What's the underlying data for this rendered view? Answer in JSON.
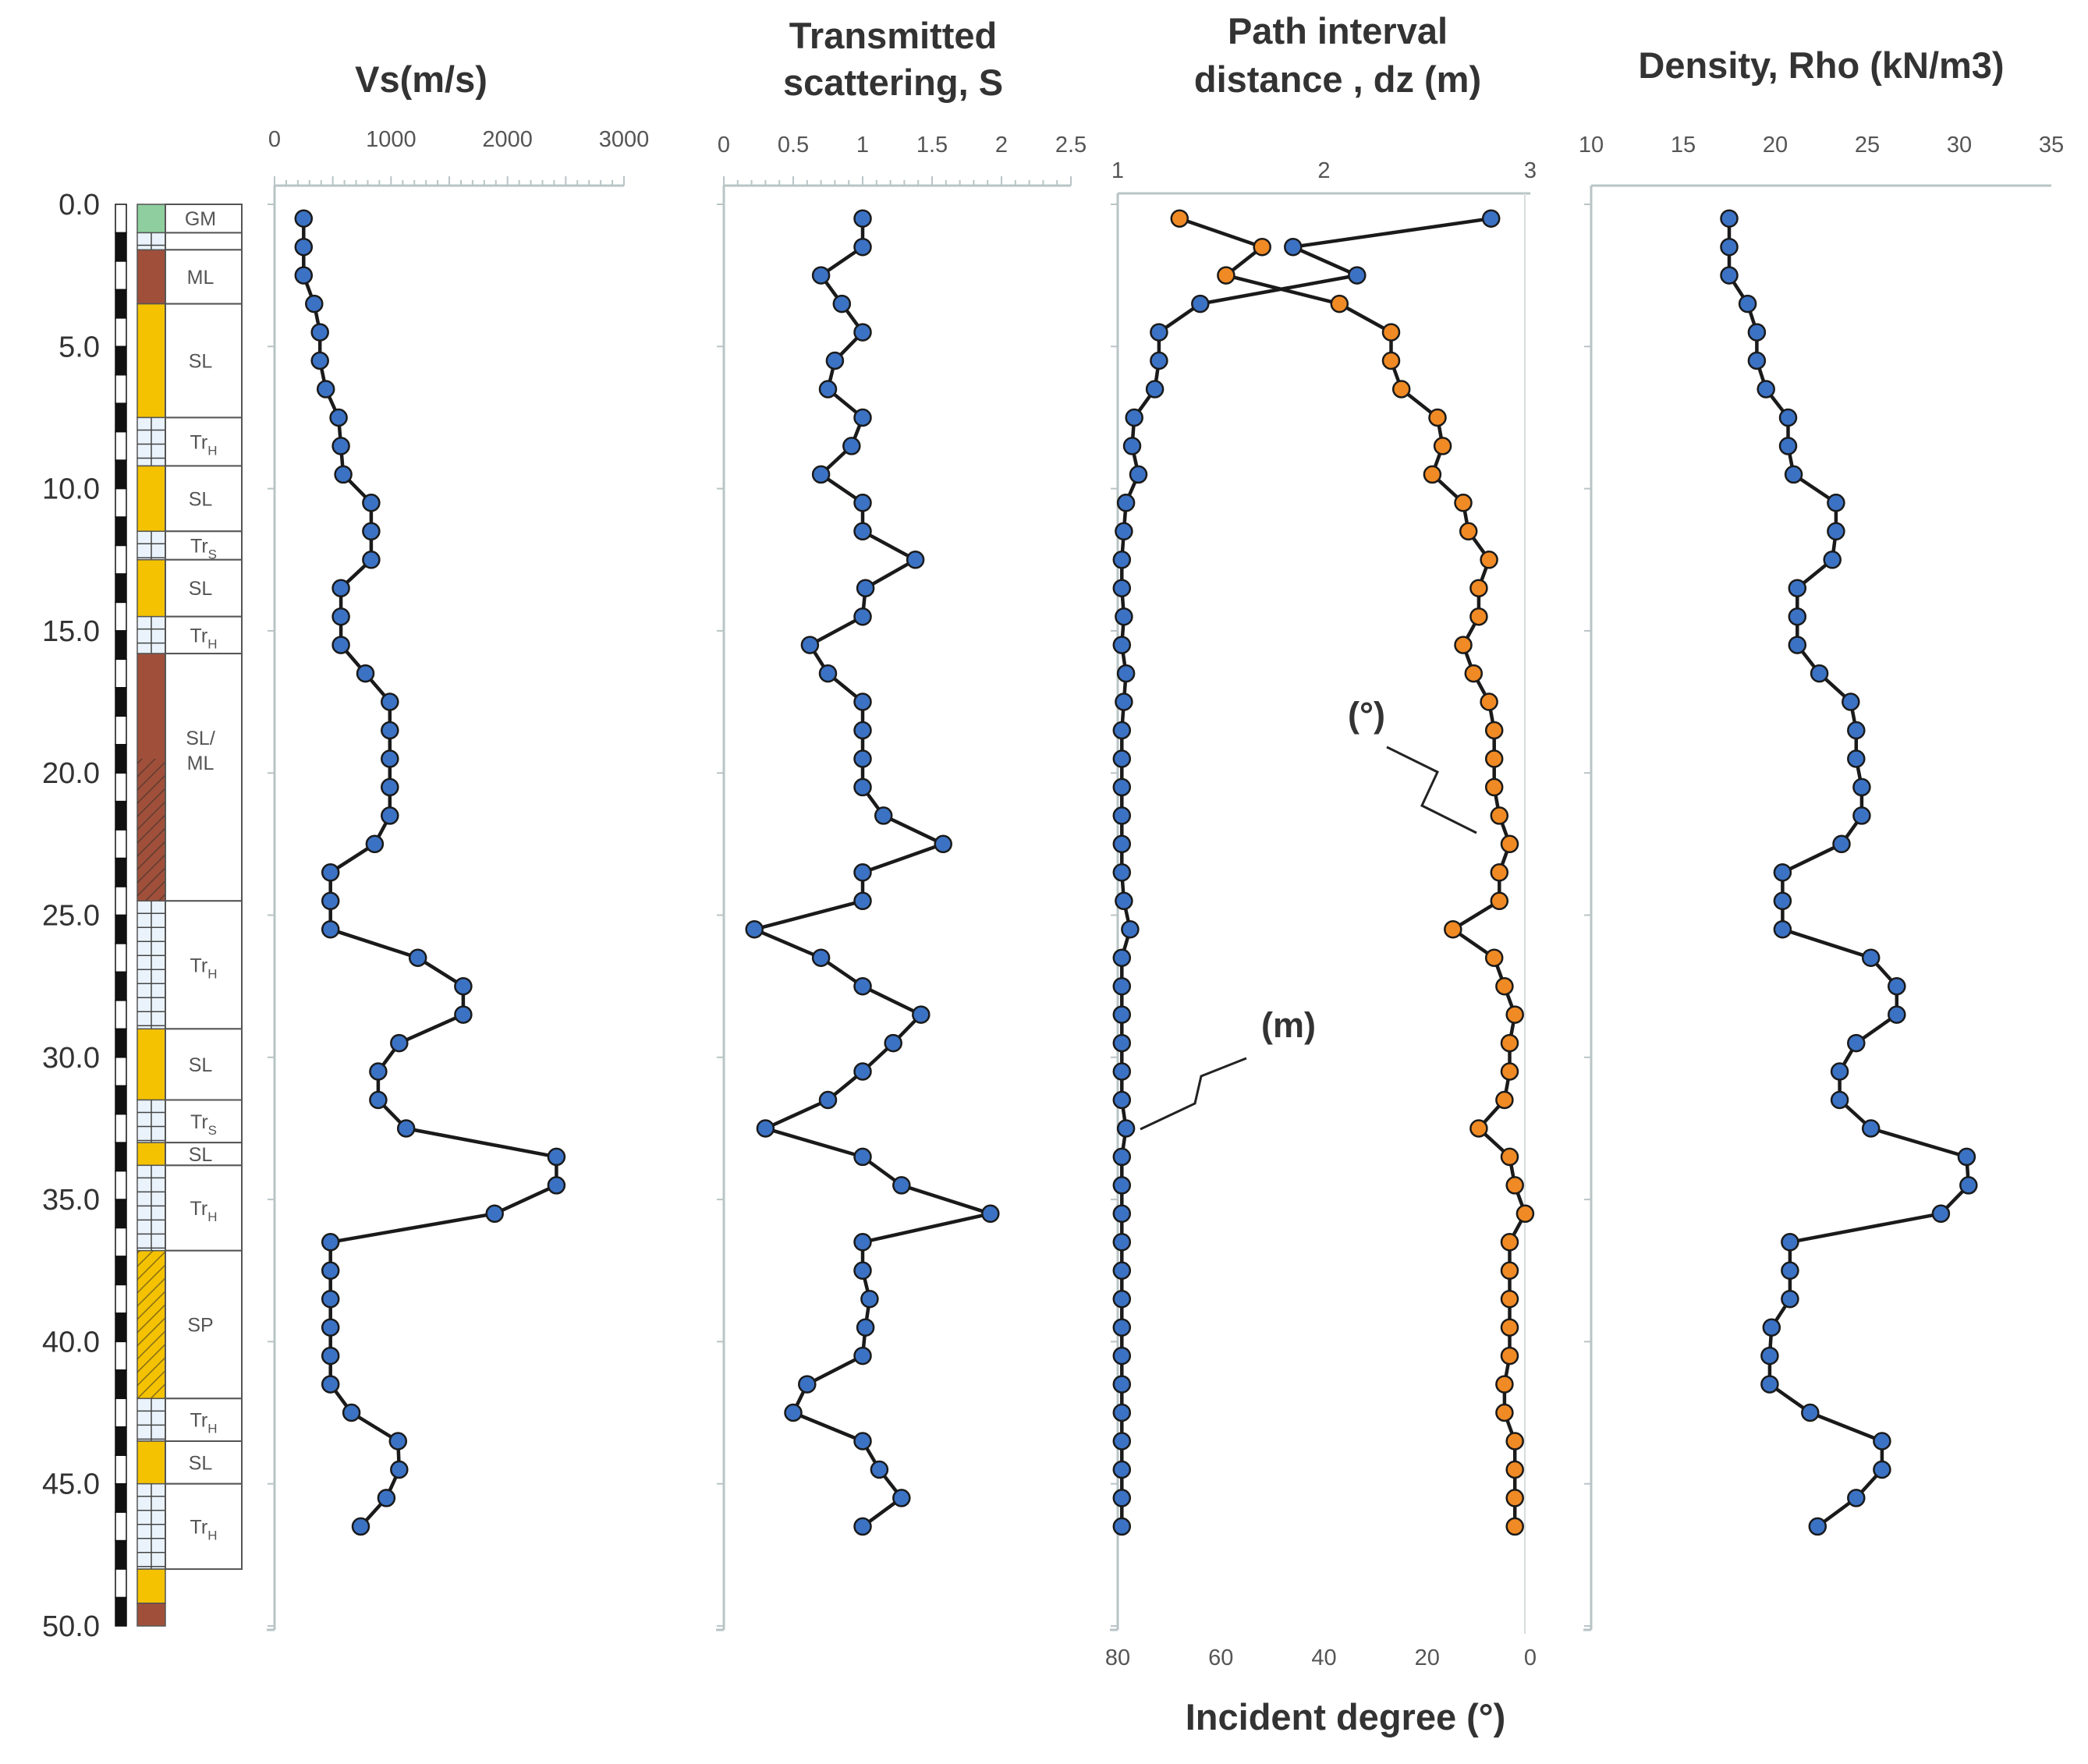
{
  "chart_data": {
    "type": "line",
    "depth_axis": {
      "label": "",
      "ticks": [
        "0.0",
        "5.0",
        "10.0",
        "15.0",
        "20.0",
        "25.0",
        "30.0",
        "35.0",
        "40.0",
        "45.0",
        "50.0"
      ],
      "range": [
        0,
        50
      ]
    },
    "lithology": [
      {
        "label": "GM",
        "top": 0,
        "bottom": 1.0,
        "color": "#8fcf9f"
      },
      {
        "label": "",
        "top": 1.0,
        "bottom": 1.6,
        "color": "#eaf3fb"
      },
      {
        "label": "ML",
        "top": 1.6,
        "bottom": 3.5,
        "color": "#a0503a"
      },
      {
        "label": "SL",
        "top": 3.5,
        "bottom": 7.5,
        "color": "#f4c200"
      },
      {
        "label": "TrH",
        "top": 7.5,
        "bottom": 9.2,
        "color": "#eaf3fb"
      },
      {
        "label": "SL",
        "top": 9.2,
        "bottom": 11.5,
        "color": "#f4c200"
      },
      {
        "label": "TrS",
        "top": 11.5,
        "bottom": 12.5,
        "color": "#eaf3fb"
      },
      {
        "label": "SL",
        "top": 12.5,
        "bottom": 14.5,
        "color": "#f4c200"
      },
      {
        "label": "TrH",
        "top": 14.5,
        "bottom": 15.8,
        "color": "#eaf3fb"
      },
      {
        "label": "SL/\nML",
        "top": 15.8,
        "bottom": 24.5,
        "color": "#a0503a"
      },
      {
        "label": "TrH",
        "top": 24.5,
        "bottom": 29.0,
        "color": "#eaf3fb"
      },
      {
        "label": "SL",
        "top": 29.0,
        "bottom": 31.5,
        "color": "#f4c200"
      },
      {
        "label": "TrS",
        "top": 31.5,
        "bottom": 33.0,
        "color": "#eaf3fb"
      },
      {
        "label": "SL",
        "top": 33.0,
        "bottom": 33.8,
        "color": "#f4c200"
      },
      {
        "label": "TrH",
        "top": 33.8,
        "bottom": 36.8,
        "color": "#eaf3fb"
      },
      {
        "label": "SP",
        "top": 36.8,
        "bottom": 42.0,
        "color": "#f4c200"
      },
      {
        "label": "TrH",
        "top": 42.0,
        "bottom": 43.5,
        "color": "#eaf3fb"
      },
      {
        "label": "SL",
        "top": 43.5,
        "bottom": 45.0,
        "color": "#f4c200"
      },
      {
        "label": "TrH",
        "top": 45.0,
        "bottom": 48.0,
        "color": "#eaf3fb"
      }
    ],
    "panels": [
      {
        "title_lines": [
          "Vs(m/s)"
        ],
        "xlim": [
          0,
          3000
        ],
        "ticks": [
          "0",
          "1000",
          "2000",
          "3000"
        ],
        "series": [
          {
            "name": "Vs",
            "color": "#3b72c4",
            "depth": [
              0.5,
              1.5,
              2.5,
              3.5,
              4.5,
              5.5,
              6.5,
              7.5,
              8.5,
              9.5,
              10.5,
              11.5,
              12.5,
              13.5,
              14.5,
              15.5,
              16.5,
              17.5,
              18.5,
              19.5,
              20.5,
              21.5,
              22.5,
              23.5,
              24.5,
              25.5,
              26.5,
              27.5,
              28.5,
              29.5,
              30.5,
              31.5,
              32.5,
              33.5,
              34.5,
              35.5,
              36.5,
              37.5,
              38.5,
              39.5,
              40.5,
              41.5,
              42.5,
              43.5,
              44.5,
              45.5,
              46.5
            ],
            "values": [
              250,
              250,
              250,
              340,
              390,
              390,
              440,
              550,
              570,
              590,
              830,
              830,
              830,
              570,
              570,
              570,
              780,
              990,
              990,
              990,
              990,
              990,
              860,
              480,
              480,
              480,
              1230,
              1620,
              1620,
              1070,
              890,
              890,
              1130,
              2420,
              2420,
              1890,
              480,
              480,
              480,
              480,
              480,
              480,
              660,
              1060,
              1070,
              960,
              740
            ]
          }
        ]
      },
      {
        "title_lines": [
          "Transmitted",
          "scattering, S"
        ],
        "xlim": [
          0,
          2.5
        ],
        "ticks": [
          "0",
          "0.5",
          "1",
          "1.5",
          "2",
          "2.5"
        ],
        "series": [
          {
            "name": "S",
            "color": "#3b72c4",
            "depth": [
              0.5,
              1.5,
              2.5,
              3.5,
              4.5,
              5.5,
              6.5,
              7.5,
              8.5,
              9.5,
              10.5,
              11.5,
              12.5,
              13.5,
              14.5,
              15.5,
              16.5,
              17.5,
              18.5,
              19.5,
              20.5,
              21.5,
              22.5,
              23.5,
              24.5,
              25.5,
              26.5,
              27.5,
              28.5,
              29.5,
              30.5,
              31.5,
              32.5,
              33.5,
              34.5,
              35.5,
              36.5,
              37.5,
              38.5,
              39.5,
              40.5,
              41.5,
              42.5,
              43.5,
              44.5,
              45.5,
              46.5
            ],
            "values": [
              1.0,
              1.0,
              0.7,
              0.85,
              1.0,
              0.8,
              0.75,
              1.0,
              0.92,
              0.7,
              1.0,
              1.0,
              1.38,
              1.02,
              1.0,
              0.62,
              0.75,
              1.0,
              1.0,
              1.0,
              1.0,
              1.15,
              1.58,
              1.0,
              1.0,
              0.22,
              0.7,
              1.0,
              1.42,
              1.22,
              1.0,
              0.75,
              0.3,
              1.0,
              1.28,
              1.92,
              1.0,
              1.0,
              1.05,
              1.02,
              1.0,
              0.6,
              0.5,
              1.0,
              1.12,
              1.28,
              1.0
            ]
          }
        ]
      },
      {
        "title_lines": [
          "Path interval",
          "distance , dz (m)"
        ],
        "xlim": [
          1,
          3
        ],
        "ticks": [
          "1",
          "2",
          "3"
        ],
        "bottom_axis": {
          "label": "Incident degree (°)",
          "ticks": [
            "80",
            "60",
            "40",
            "20",
            "0"
          ],
          "range": [
            80,
            0
          ]
        },
        "annotations": [
          "(°)",
          "(m)"
        ],
        "series": [
          {
            "name": "dz (m)",
            "color": "#3b72c4",
            "depth": [
              0.5,
              1.5,
              2.5,
              3.5,
              4.5,
              5.5,
              6.5,
              7.5,
              8.5,
              9.5,
              10.5,
              11.5,
              12.5,
              13.5,
              14.5,
              15.5,
              16.5,
              17.5,
              18.5,
              19.5,
              20.5,
              21.5,
              22.5,
              23.5,
              24.5,
              25.5,
              26.5,
              27.5,
              28.5,
              29.5,
              30.5,
              31.5,
              32.5,
              33.5,
              34.5,
              35.5,
              36.5,
              37.5,
              38.5,
              39.5,
              40.5,
              41.5,
              42.5,
              43.5,
              44.5,
              45.5,
              46.5
            ],
            "values": [
              2.81,
              1.85,
              2.16,
              1.4,
              1.2,
              1.2,
              1.18,
              1.08,
              1.07,
              1.1,
              1.04,
              1.03,
              1.02,
              1.02,
              1.03,
              1.02,
              1.04,
              1.03,
              1.02,
              1.02,
              1.02,
              1.02,
              1.02,
              1.02,
              1.03,
              1.06,
              1.02,
              1.02,
              1.02,
              1.02,
              1.02,
              1.02,
              1.04,
              1.02,
              1.02,
              1.02,
              1.02,
              1.02,
              1.02,
              1.02,
              1.02,
              1.02,
              1.02,
              1.02,
              1.02,
              1.02,
              1.02
            ]
          },
          {
            "name": "Incident degree (°)",
            "color": "#f08a24",
            "depth": [
              0.5,
              1.5,
              2.5,
              3.5,
              4.5,
              5.5,
              6.5,
              7.5,
              8.5,
              9.5,
              10.5,
              11.5,
              12.5,
              13.5,
              14.5,
              15.5,
              16.5,
              17.5,
              18.5,
              19.5,
              20.5,
              21.5,
              22.5,
              23.5,
              24.5,
              25.5,
              26.5,
              27.5,
              28.5,
              29.5,
              30.5,
              31.5,
              32.5,
              33.5,
              34.5,
              35.5,
              36.5,
              37.5,
              38.5,
              39.5,
              40.5,
              41.5,
              42.5,
              43.5,
              44.5,
              45.5,
              46.5
            ],
            "values": [
              68,
              52,
              59,
              37,
              27,
              27,
              25,
              18,
              17,
              19,
              13,
              12,
              8,
              10,
              10,
              13,
              11,
              8,
              7,
              7,
              7,
              6,
              4,
              6,
              6,
              15,
              7,
              5,
              3,
              4,
              4,
              5,
              10,
              4,
              3,
              1,
              4,
              4,
              4,
              4,
              4,
              5,
              5,
              3,
              3,
              3,
              3
            ]
          }
        ]
      },
      {
        "title_lines": [
          "Density, Rho (kN/m3)"
        ],
        "xlim": [
          10,
          35
        ],
        "ticks": [
          "10",
          "15",
          "20",
          "25",
          "30",
          "35"
        ],
        "series": [
          {
            "name": "Rho",
            "color": "#3b72c4",
            "depth": [
              0.5,
              1.5,
              2.5,
              3.5,
              4.5,
              5.5,
              6.5,
              7.5,
              8.5,
              9.5,
              10.5,
              11.5,
              12.5,
              13.5,
              14.5,
              15.5,
              16.5,
              17.5,
              18.5,
              19.5,
              20.5,
              21.5,
              22.5,
              23.5,
              24.5,
              25.5,
              26.5,
              27.5,
              28.5,
              29.5,
              30.5,
              31.5,
              32.5,
              33.5,
              34.5,
              35.5,
              36.5,
              37.5,
              38.5,
              39.5,
              40.5,
              41.5,
              42.5,
              43.5,
              44.5,
              45.5,
              46.5
            ],
            "values": [
              17.5,
              17.5,
              17.5,
              18.5,
              19.0,
              19.0,
              19.5,
              20.7,
              20.7,
              21.0,
              23.3,
              23.3,
              23.1,
              21.2,
              21.2,
              21.2,
              22.4,
              24.1,
              24.4,
              24.4,
              24.7,
              24.7,
              23.6,
              20.4,
              20.4,
              20.4,
              25.2,
              26.6,
              26.6,
              24.4,
              23.5,
              23.5,
              25.2,
              30.4,
              30.5,
              29.0,
              20.8,
              20.8,
              20.8,
              19.8,
              19.7,
              19.7,
              21.9,
              25.8,
              25.8,
              24.4,
              22.3
            ]
          }
        ]
      }
    ]
  }
}
